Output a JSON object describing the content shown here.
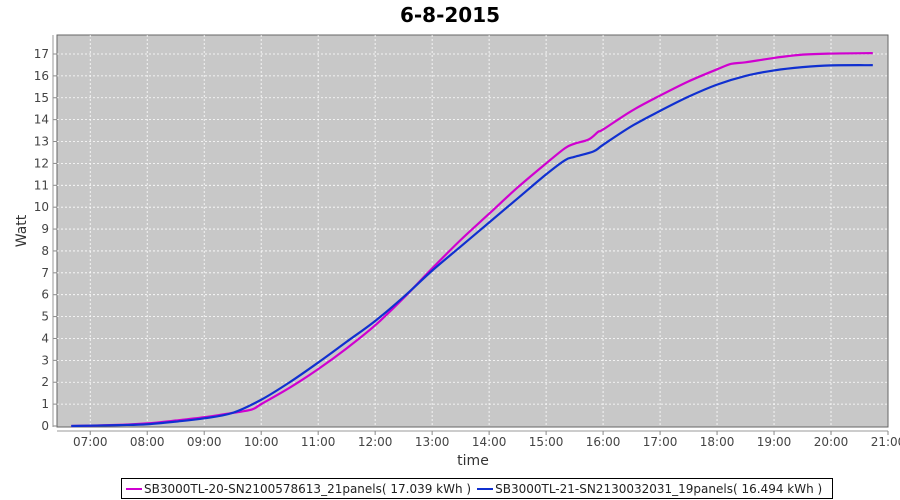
{
  "chart_data": {
    "type": "line",
    "title": "6-8-2015",
    "xlabel": "time",
    "ylabel": "Watt",
    "xlim": [
      "06:25",
      "21:00"
    ],
    "ylim": [
      0,
      17.7
    ],
    "x_ticks": [
      "07:00",
      "08:00",
      "09:00",
      "10:00",
      "11:00",
      "12:00",
      "13:00",
      "14:00",
      "15:00",
      "16:00",
      "17:00",
      "18:00",
      "19:00",
      "20:00",
      "21:00"
    ],
    "y_ticks": [
      0,
      1,
      2,
      3,
      4,
      5,
      6,
      7,
      8,
      9,
      10,
      11,
      12,
      13,
      14,
      15,
      16,
      17
    ],
    "grid": true,
    "legend_position": "bottom",
    "background": "#c8c8c8",
    "series": [
      {
        "name": "SB3000TL-20-SN2100578613_21panels( 17.039 kWh )",
        "color": "#d000d0",
        "x": [
          "06:40",
          "07:30",
          "08:00",
          "08:30",
          "09:00",
          "09:30",
          "09:50",
          "10:00",
          "10:30",
          "11:00",
          "11:30",
          "12:00",
          "12:30",
          "13:00",
          "13:30",
          "14:00",
          "14:30",
          "15:00",
          "15:20",
          "15:30",
          "15:45",
          "15:55",
          "16:00",
          "16:30",
          "17:00",
          "17:30",
          "18:00",
          "18:15",
          "18:30",
          "19:00",
          "19:30",
          "20:00",
          "20:44"
        ],
        "values": [
          0,
          0.05,
          0.12,
          0.25,
          0.4,
          0.6,
          0.75,
          1.0,
          1.75,
          2.6,
          3.55,
          4.6,
          5.85,
          7.2,
          8.5,
          9.7,
          10.9,
          12.0,
          12.7,
          12.9,
          13.1,
          13.45,
          13.55,
          14.4,
          15.1,
          15.75,
          16.3,
          16.55,
          16.62,
          16.82,
          16.97,
          17.02,
          17.04
        ]
      },
      {
        "name": "SB3000TL-21-SN2130032031_19panels( 16.494 kWh )",
        "color": "#1030d0",
        "x": [
          "06:40",
          "07:30",
          "08:00",
          "08:30",
          "09:00",
          "09:30",
          "10:00",
          "10:30",
          "11:00",
          "11:30",
          "12:00",
          "12:30",
          "13:00",
          "13:30",
          "14:00",
          "14:30",
          "15:00",
          "15:20",
          "15:30",
          "15:50",
          "16:00",
          "16:30",
          "17:00",
          "17:30",
          "18:00",
          "18:30",
          "19:00",
          "19:30",
          "20:00",
          "20:44"
        ],
        "values": [
          0,
          0.04,
          0.08,
          0.2,
          0.35,
          0.6,
          1.2,
          2.0,
          2.9,
          3.85,
          4.8,
          5.9,
          7.1,
          8.2,
          9.3,
          10.4,
          11.5,
          12.15,
          12.3,
          12.55,
          12.85,
          13.7,
          14.4,
          15.05,
          15.6,
          16.0,
          16.25,
          16.4,
          16.48,
          16.49
        ]
      }
    ]
  }
}
